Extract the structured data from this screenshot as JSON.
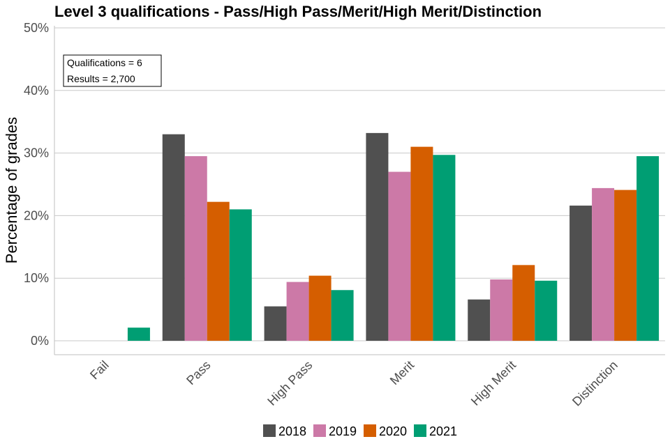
{
  "chart_data": {
    "type": "bar",
    "title": "Level 3 qualifications  - Pass/High Pass/Merit/High Merit/Distinction",
    "xlabel": "",
    "ylabel": "Percentage of grades",
    "ylim": [
      0,
      50
    ],
    "yticks": [
      0,
      10,
      20,
      30,
      40,
      50
    ],
    "ytick_labels": [
      "0%",
      "10%",
      "20%",
      "30%",
      "40%",
      "50%"
    ],
    "grid": true,
    "legend_position": "bottom",
    "categories": [
      "Fail",
      "Pass",
      "High Pass",
      "Merit",
      "High Merit",
      "Distinction"
    ],
    "series": [
      {
        "name": "2018",
        "color": "#505050",
        "values": [
          0,
          33.0,
          5.5,
          33.2,
          6.6,
          21.6
        ]
      },
      {
        "name": "2019",
        "color": "#cc79a7",
        "values": [
          0,
          29.5,
          9.4,
          27.0,
          9.8,
          24.4
        ]
      },
      {
        "name": "2020",
        "color": "#d55e00",
        "values": [
          0,
          22.2,
          10.4,
          31.0,
          12.1,
          24.1
        ]
      },
      {
        "name": "2021",
        "color": "#009e73",
        "values": [
          2.1,
          21.0,
          8.1,
          29.7,
          9.6,
          29.5
        ]
      }
    ],
    "annotations": [
      "Qualifications = 6",
      "Results = 2,700"
    ]
  }
}
